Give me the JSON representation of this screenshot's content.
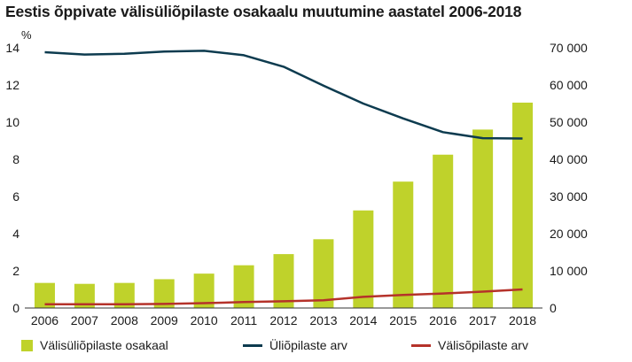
{
  "title": "Eestis õppivate välisüliõpilaste osakaalu muutumine aastatel 2006-2018",
  "chart_data": {
    "type": "bar+line",
    "categories": [
      "2006",
      "2007",
      "2008",
      "2009",
      "2010",
      "2011",
      "2012",
      "2013",
      "2014",
      "2015",
      "2016",
      "2017",
      "2018"
    ],
    "y_left": {
      "label": "%",
      "range": [
        0,
        14
      ],
      "ticks": [
        "0",
        "2",
        "4",
        "6",
        "8",
        "10",
        "12",
        "14"
      ]
    },
    "y_right": {
      "label": "",
      "range": [
        0,
        70000
      ],
      "ticks": [
        "0",
        "10 000",
        "20 000",
        "30 000",
        "40 000",
        "50 000",
        "60 000",
        "70 000"
      ]
    },
    "series": [
      {
        "name": "Välisüliõpilaste osakaal",
        "kind": "bar",
        "axis": "left",
        "color": "#bfd22b",
        "values": [
          1.35,
          1.3,
          1.35,
          1.55,
          1.85,
          2.3,
          2.9,
          3.7,
          5.25,
          6.8,
          8.25,
          9.6,
          11.05
        ]
      },
      {
        "name": "Üliõpilaste arv",
        "kind": "line",
        "axis": "right",
        "color": "#0d3b4f",
        "values": [
          68800,
          68200,
          68400,
          69000,
          69200,
          68000,
          64900,
          59800,
          55000,
          51000,
          47300,
          45700,
          45600
        ]
      },
      {
        "name": "Välisõpilaste arv",
        "kind": "line",
        "axis": "right",
        "color": "#b5322a",
        "values": [
          1000,
          1000,
          1000,
          1100,
          1300,
          1600,
          1800,
          2100,
          3000,
          3500,
          3900,
          4400,
          5000
        ]
      }
    ],
    "grid": false,
    "legend_position": "bottom"
  }
}
